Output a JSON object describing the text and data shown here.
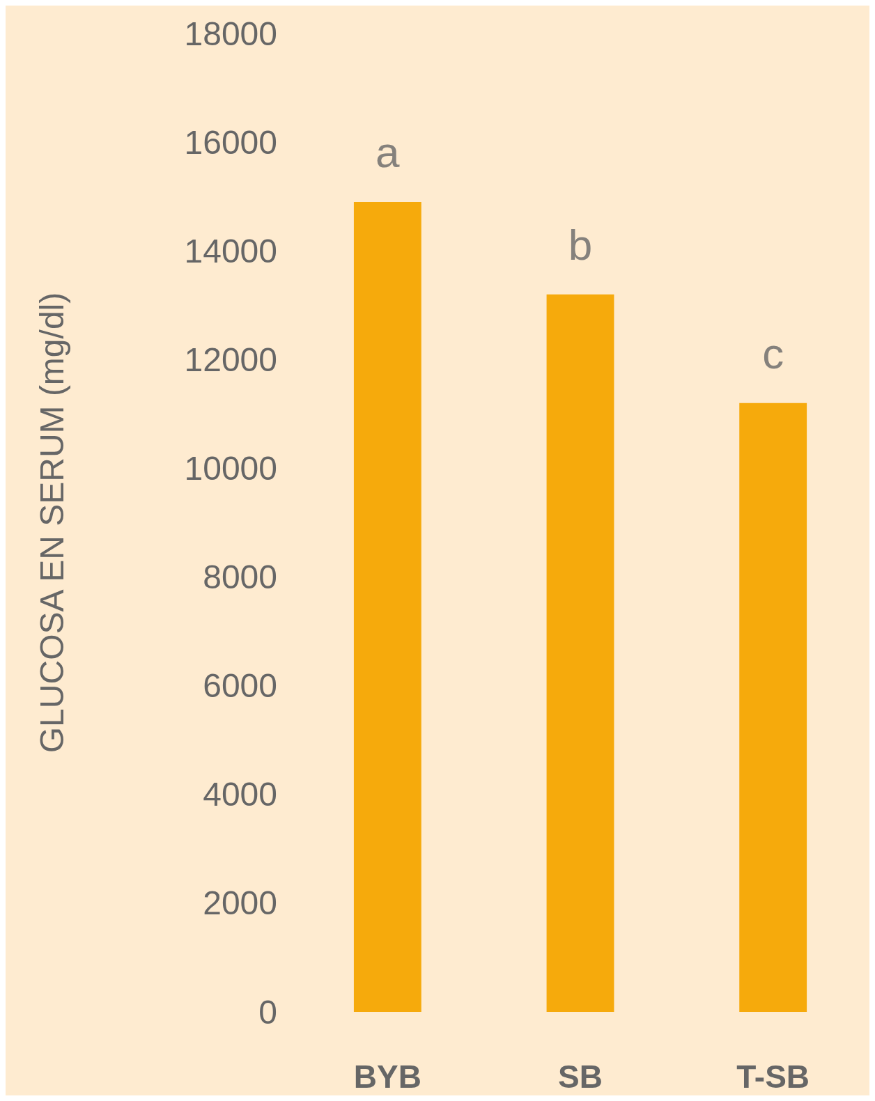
{
  "chart_data": {
    "type": "bar",
    "ylabel": "GLUCOSA EN SERUM (mg/dl)",
    "categories": [
      "BYB",
      "SB",
      "T-SB"
    ],
    "values": [
      14900,
      13200,
      11200
    ],
    "color": "#f6aa0c",
    "ylim": [
      0,
      18000
    ],
    "yticks": [
      0,
      2000,
      4000,
      6000,
      8000,
      10000,
      12000,
      14000,
      16000,
      18000
    ],
    "grid": false,
    "annotations": [
      {
        "text": "a",
        "x": "BYB",
        "y": 14900
      },
      {
        "text": "b",
        "x": "SB",
        "y": 13200
      },
      {
        "text": "c",
        "x": "T-SB",
        "y": 11200
      }
    ]
  }
}
